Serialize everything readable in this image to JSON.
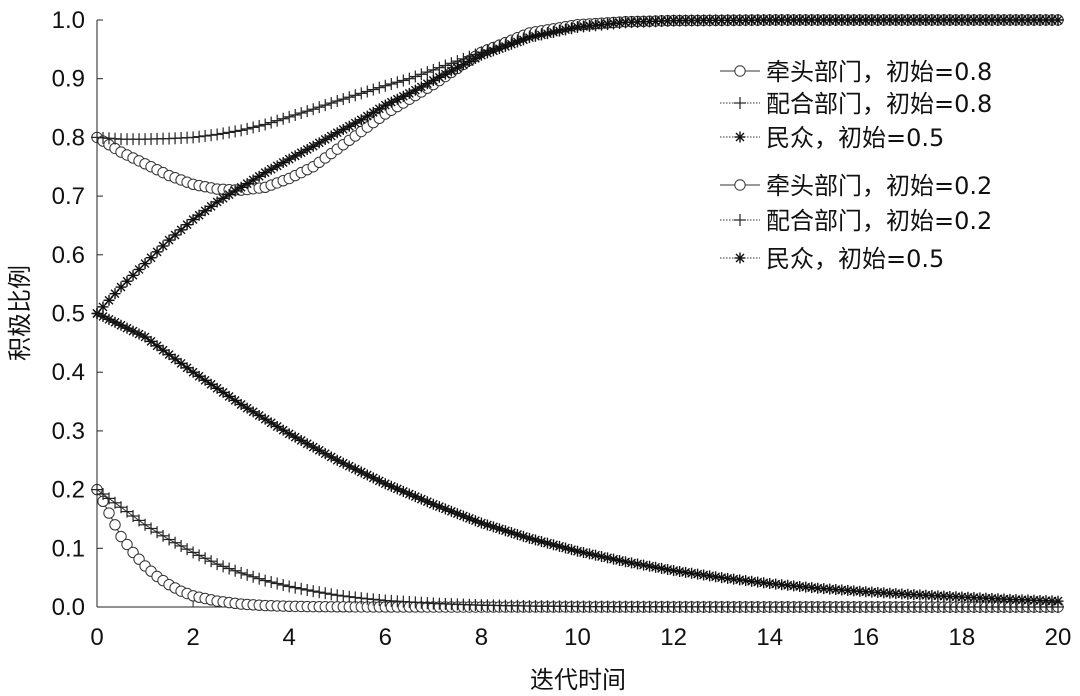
{
  "chart_data": {
    "type": "line",
    "xlabel": "迭代时间",
    "ylabel": "积极比例",
    "xlim": [
      0,
      20
    ],
    "ylim": [
      0,
      1.0
    ],
    "xticks": [
      0,
      2,
      4,
      6,
      8,
      10,
      12,
      14,
      16,
      18,
      20
    ],
    "yticks": [
      "0.0",
      "0.1",
      "0.2",
      "0.3",
      "0.4",
      "0.5",
      "0.6",
      "0.7",
      "0.8",
      "0.9",
      "1.0"
    ],
    "grid": false,
    "legend_position": "top-right",
    "series": [
      {
        "name": "牵头部门，初始=0.8",
        "marker": "circle",
        "x": [
          0,
          0.5,
          1,
          1.5,
          2,
          2.5,
          3,
          3.5,
          4,
          4.5,
          5,
          5.5,
          6,
          6.5,
          7,
          8,
          9,
          10,
          11,
          12,
          14,
          16,
          18,
          20
        ],
        "y": [
          0.8,
          0.775,
          0.755,
          0.735,
          0.72,
          0.712,
          0.71,
          0.715,
          0.73,
          0.75,
          0.78,
          0.81,
          0.84,
          0.865,
          0.89,
          0.945,
          0.978,
          0.992,
          0.997,
          0.999,
          1.0,
          1.0,
          1.0,
          1.0
        ]
      },
      {
        "name": "配合部门，初始=0.8",
        "marker": "plus",
        "x": [
          0,
          0.5,
          1,
          1.5,
          2,
          2.5,
          3,
          3.5,
          4,
          4.5,
          5,
          5.5,
          6,
          6.5,
          7,
          8,
          9,
          10,
          11,
          12,
          14,
          16,
          18,
          20
        ],
        "y": [
          0.8,
          0.797,
          0.797,
          0.798,
          0.8,
          0.805,
          0.812,
          0.822,
          0.835,
          0.848,
          0.862,
          0.875,
          0.888,
          0.9,
          0.915,
          0.945,
          0.972,
          0.988,
          0.996,
          0.999,
          1.0,
          1.0,
          1.0,
          1.0
        ]
      },
      {
        "name": "民众，初始=0.5",
        "marker": "star",
        "x": [
          0,
          0.5,
          1,
          1.5,
          2,
          2.5,
          3,
          3.5,
          4,
          4.5,
          5,
          5.5,
          6,
          6.5,
          7,
          8,
          9,
          10,
          11,
          12,
          14,
          16,
          18,
          20
        ],
        "y": [
          0.5,
          0.545,
          0.585,
          0.625,
          0.66,
          0.69,
          0.715,
          0.74,
          0.763,
          0.785,
          0.808,
          0.83,
          0.855,
          0.875,
          0.897,
          0.94,
          0.97,
          0.988,
          0.996,
          0.999,
          1.0,
          1.0,
          1.0,
          1.0
        ]
      },
      {
        "name": "牵头部门，初始=0.2",
        "marker": "circle",
        "x": [
          0,
          0.25,
          0.5,
          0.75,
          1,
          1.25,
          1.5,
          1.75,
          2,
          2.5,
          3,
          3.5,
          4,
          4.5,
          5,
          6,
          7,
          8,
          10,
          12,
          14,
          16,
          18,
          20
        ],
        "y": [
          0.2,
          0.16,
          0.12,
          0.093,
          0.07,
          0.052,
          0.038,
          0.027,
          0.019,
          0.01,
          0.005,
          0.0025,
          0.0012,
          0.0006,
          0.0003,
          0.0001,
          0.0,
          0.0,
          0.0,
          0.0,
          0.0,
          0.0,
          0.0,
          0.0
        ]
      },
      {
        "name": "配合部门，初始=0.2",
        "marker": "plus",
        "x": [
          0,
          0.5,
          1,
          1.5,
          2,
          2.5,
          3,
          3.5,
          4,
          4.5,
          5,
          5.5,
          6,
          7,
          8,
          9,
          10,
          12,
          14,
          16,
          18,
          20
        ],
        "y": [
          0.2,
          0.17,
          0.14,
          0.115,
          0.093,
          0.073,
          0.058,
          0.045,
          0.035,
          0.027,
          0.02,
          0.015,
          0.011,
          0.006,
          0.003,
          0.0016,
          0.0008,
          0.0002,
          0.0,
          0.0,
          0.0,
          0.0
        ]
      },
      {
        "name": "民众，初始=0.5",
        "marker": "star",
        "x": [
          0,
          1,
          2,
          3,
          4,
          5,
          6,
          7,
          8,
          9,
          10,
          11,
          12,
          13,
          14,
          15,
          16,
          17,
          18,
          19,
          20
        ],
        "y": [
          0.5,
          0.46,
          0.4,
          0.345,
          0.295,
          0.25,
          0.21,
          0.175,
          0.143,
          0.117,
          0.095,
          0.077,
          0.062,
          0.05,
          0.04,
          0.032,
          0.026,
          0.021,
          0.017,
          0.013,
          0.01
        ]
      }
    ]
  }
}
